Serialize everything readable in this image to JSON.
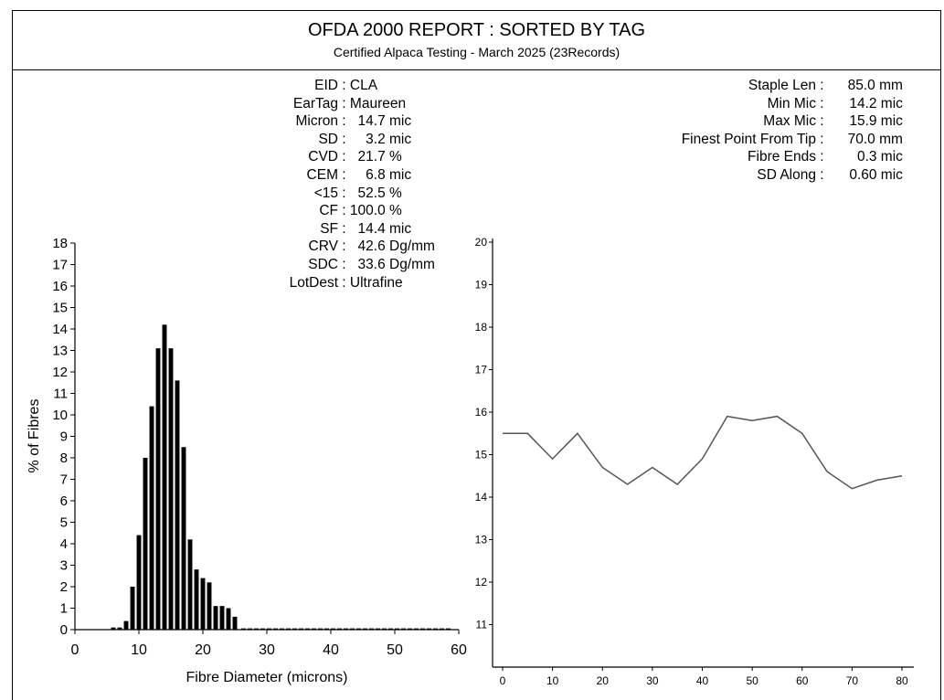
{
  "header": {
    "title": "OFDA 2000 REPORT : SORTED BY TAG",
    "subtitle": "Certified Alpaca Testing - March 2025 (23Records)"
  },
  "stats_left": [
    {
      "label": "EID",
      "value": "CLA"
    },
    {
      "label": "EarTag",
      "value": "Maureen"
    },
    {
      "label": "Micron",
      "value": "  14.7 mic"
    },
    {
      "label": "SD",
      "value": "    3.2 mic"
    },
    {
      "label": "CVD",
      "value": "  21.7 %"
    },
    {
      "label": "CEM",
      "value": "    6.8 mic"
    },
    {
      "label": "<15",
      "value": "  52.5 %"
    },
    {
      "label": "CF",
      "value": "100.0 %"
    },
    {
      "label": "SF",
      "value": "  14.4 mic"
    },
    {
      "label": "CRV",
      "value": "  42.6 Dg/mm"
    },
    {
      "label": "SDC",
      "value": "  33.6 Dg/mm"
    },
    {
      "label": "LotDest",
      "value": "Ultrafine"
    }
  ],
  "stats_right": [
    {
      "label": "Staple Len",
      "value": "85.0 mm"
    },
    {
      "label": "Min Mic",
      "value": "14.2 mic"
    },
    {
      "label": "Max Mic",
      "value": "15.9 mic"
    },
    {
      "label": "Finest Point From Tip",
      "value": "70.0 mm"
    },
    {
      "label": "Fibre Ends",
      "value": "0.3 mic"
    },
    {
      "label": "SD Along",
      "value": "0.60 mic"
    }
  ],
  "chart_data": [
    {
      "type": "bar",
      "xlabel": "Fibre Diameter (microns)",
      "ylabel": "% of Fibres",
      "xlim": [
        0,
        60
      ],
      "ylim": [
        0,
        18
      ],
      "xticks": [
        0,
        10,
        20,
        30,
        40,
        50,
        60
      ],
      "yticks": [
        0,
        1,
        2,
        3,
        4,
        5,
        6,
        7,
        8,
        9,
        10,
        11,
        12,
        13,
        14,
        15,
        16,
        17,
        18
      ],
      "x": [
        6,
        7,
        8,
        9,
        10,
        11,
        12,
        13,
        14,
        15,
        16,
        17,
        18,
        19,
        20,
        21,
        22,
        23,
        24,
        25
      ],
      "values": [
        0.1,
        0.1,
        0.4,
        2.0,
        4.4,
        8.0,
        10.4,
        13.1,
        14.2,
        13.1,
        11.6,
        8.5,
        4.2,
        2.8,
        2.4,
        2.2,
        1.1,
        1.1,
        1.0,
        0.6
      ]
    },
    {
      "type": "line",
      "xlim": [
        0,
        80
      ],
      "ylim": [
        10,
        20
      ],
      "xticks": [
        0,
        10,
        20,
        30,
        40,
        50,
        60,
        70,
        80
      ],
      "yticks": [
        11,
        12,
        13,
        14,
        15,
        16,
        17,
        18,
        19,
        20
      ],
      "x": [
        0,
        5,
        10,
        15,
        20,
        25,
        30,
        35,
        40,
        45,
        50,
        55,
        60,
        65,
        70,
        75,
        80
      ],
      "y": [
        15.5,
        15.5,
        14.9,
        15.5,
        14.7,
        14.3,
        14.7,
        14.3,
        14.9,
        15.9,
        15.8,
        15.9,
        15.5,
        14.6,
        14.2,
        14.4,
        14.5
      ]
    }
  ]
}
